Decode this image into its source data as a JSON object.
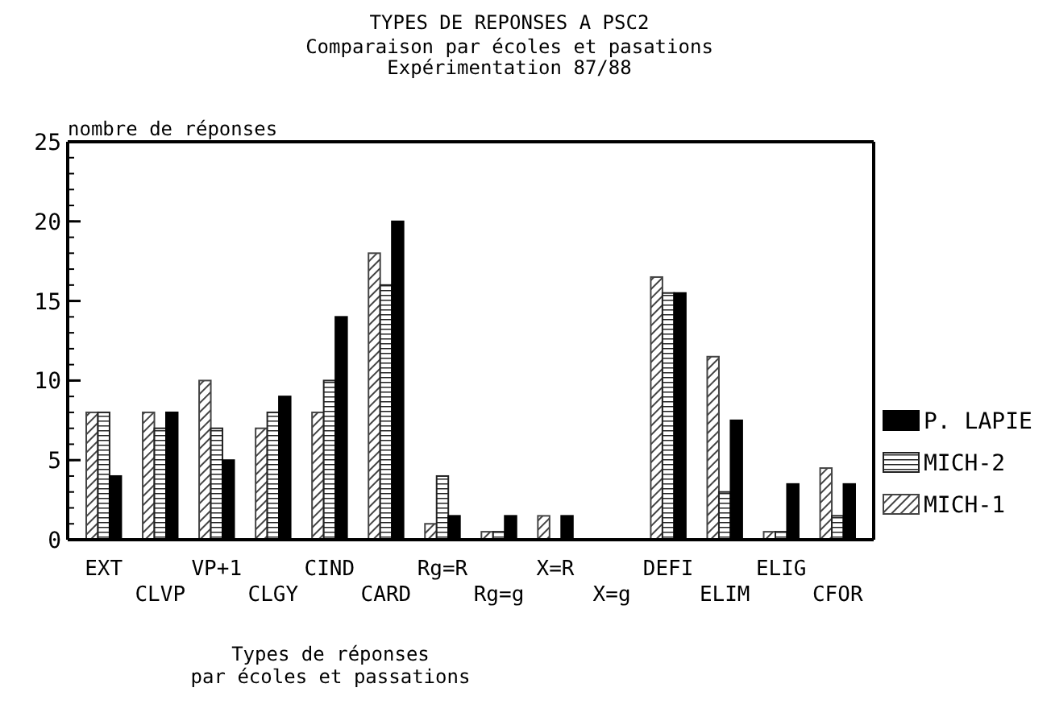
{
  "chart_data": {
    "type": "bar",
    "title": "TYPES DE REPONSES A PSC2",
    "subtitle": "Comparaison par écoles et pasations\nExpérimentation 87/88",
    "xlabel": "Types de réponses\npar écoles et passations",
    "ylabel": "nombre de réponses",
    "categories": [
      "EXT",
      "CLVP",
      "VP+1",
      "CLGY",
      "CIND",
      "CARD",
      "Rg=R",
      "Rg=g",
      "X=R",
      "X=g",
      "DEFI",
      "ELIM",
      "ELIG",
      "CFOR"
    ],
    "series": [
      {
        "name": "MICH-1",
        "color": "#444444",
        "values": [
          8,
          8,
          10,
          7,
          8,
          18,
          1,
          0.5,
          1.5,
          0,
          16.5,
          11.5,
          0.5,
          4.5
        ]
      },
      {
        "name": "MICH-2",
        "color": "#222222",
        "values": [
          8,
          7,
          7,
          8,
          10,
          16,
          4,
          0.5,
          0,
          0,
          15.5,
          3,
          0.5,
          1.5
        ]
      },
      {
        "name": "P. LAPIE",
        "color": "#000000",
        "values": [
          4,
          8,
          5,
          9,
          14,
          20,
          1.5,
          1.5,
          1.5,
          0,
          15.5,
          7.5,
          3.5,
          3.5
        ]
      }
    ],
    "ylim": [
      0,
      25
    ],
    "yticks": [
      0,
      5,
      10,
      15,
      20,
      25
    ],
    "grid": false,
    "legend": "right"
  }
}
